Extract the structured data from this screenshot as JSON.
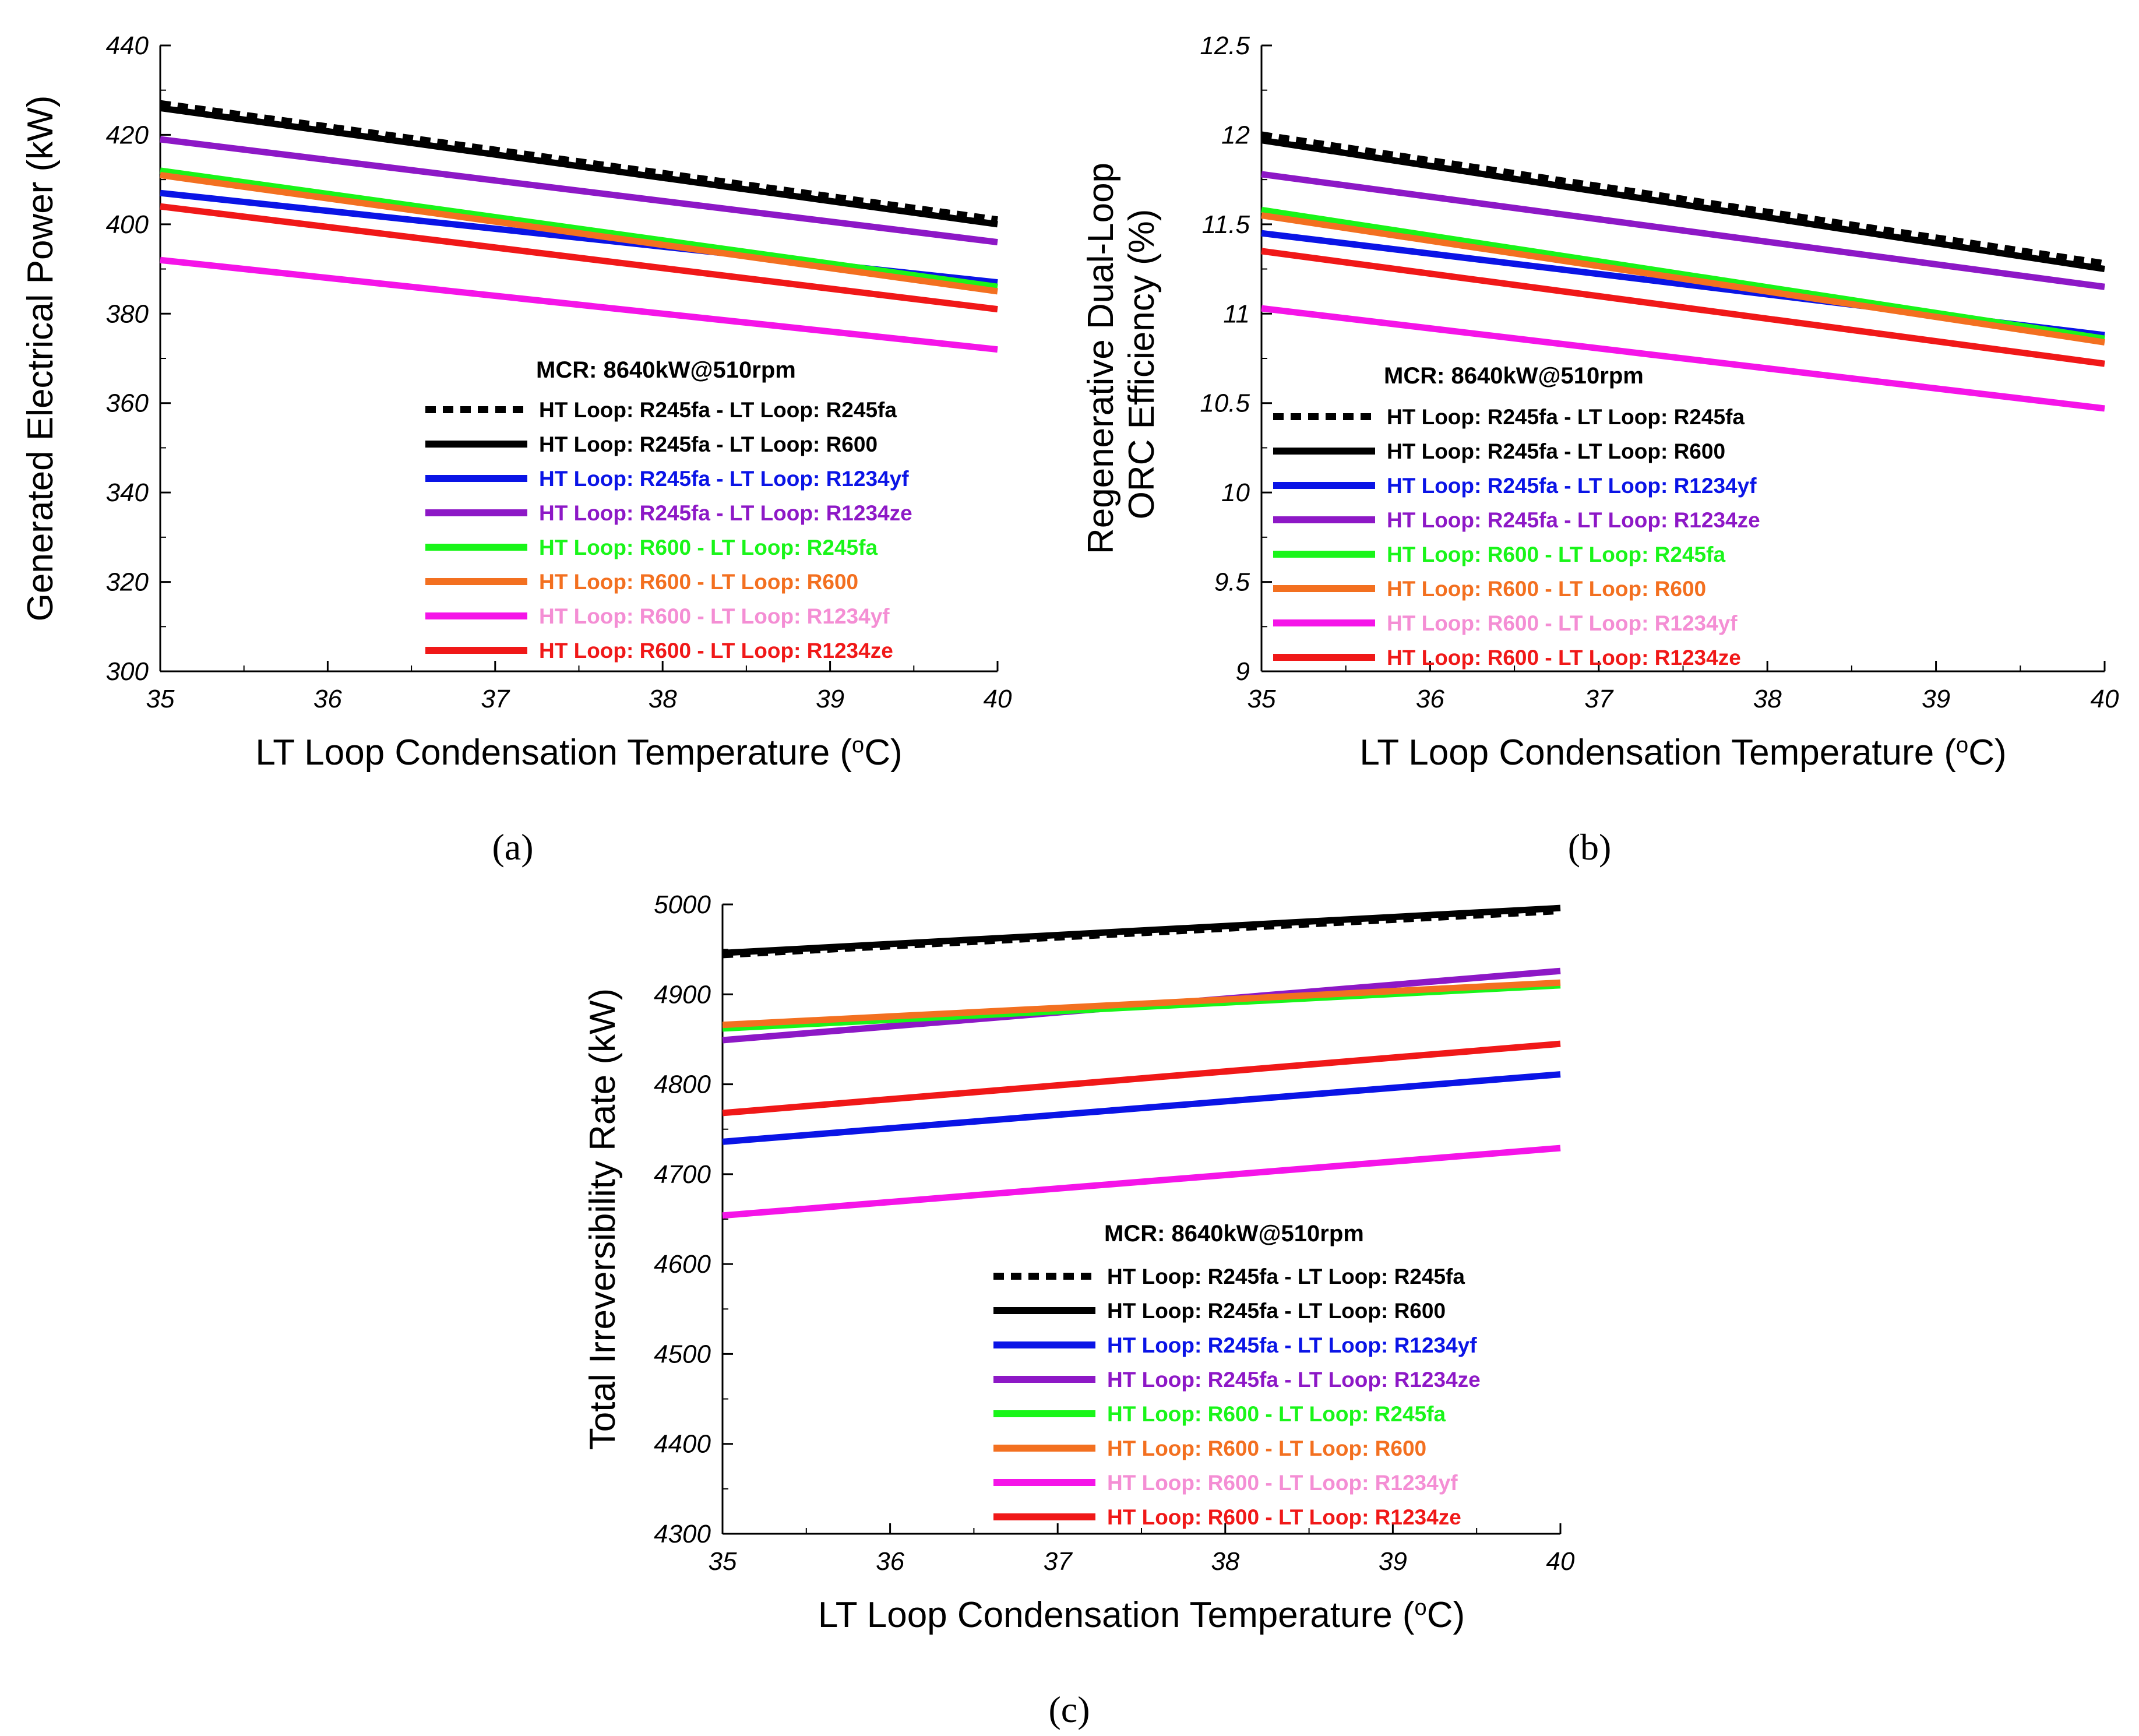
{
  "figure_labels": [
    "(a)",
    "(b)",
    "(c)"
  ],
  "legend_colors": {
    "black": "#000000",
    "blue": "#0a14e6",
    "purple": "#8d18c6",
    "green": "#19f519",
    "orange": "#f37020",
    "magenta": "#f514e8",
    "pink": "#f48ed4",
    "red": "#f01818"
  },
  "chart_data": [
    {
      "type": "line",
      "panel": "(a)",
      "xlabel": "LT Loop Condensation Temperature (",
      "xlabel_sup": "o",
      "xlabel_end": "C)",
      "ylabel": "Generated Electrical Power (kW)",
      "xlim": [
        35,
        40
      ],
      "ylim": [
        300,
        440
      ],
      "xticks": [
        35,
        36,
        37,
        38,
        39,
        40
      ],
      "yticks": [
        300,
        320,
        340,
        360,
        380,
        400,
        420,
        440
      ],
      "grid": false,
      "legend_title": "MCR: 8640kW@510rpm",
      "legend_placement": "bottom-right",
      "x": [
        35,
        40
      ],
      "series": [
        {
          "name": "HT Loop: R245fa - LT Loop: R245fa",
          "values": [
            427,
            401
          ],
          "color": "#000000",
          "label_color": "#000000",
          "dashed": true
        },
        {
          "name": "HT Loop: R245fa - LT Loop: R600",
          "values": [
            426,
            400
          ],
          "color": "#000000",
          "label_color": "#000000",
          "dashed": false
        },
        {
          "name": "HT Loop: R245fa - LT Loop: R1234yf",
          "values": [
            407,
            387
          ],
          "color": "#0a14e6",
          "label_color": "#0a14e6",
          "dashed": false
        },
        {
          "name": "HT Loop: R245fa - LT Loop: R1234ze",
          "values": [
            419,
            396
          ],
          "color": "#8d18c6",
          "label_color": "#8d18c6",
          "dashed": false
        },
        {
          "name": "HT Loop: R600 - LT Loop: R245fa",
          "values": [
            412,
            386
          ],
          "color": "#19f519",
          "label_color": "#19f519",
          "dashed": false
        },
        {
          "name": "HT Loop: R600 - LT Loop: R600",
          "values": [
            411,
            385
          ],
          "color": "#f37020",
          "label_color": "#f37020",
          "dashed": false
        },
        {
          "name": "HT Loop: R600 - LT Loop: R1234yf",
          "values": [
            392,
            372
          ],
          "color": "#f514e8",
          "label_color": "#f48ed4",
          "dashed": false
        },
        {
          "name": "HT Loop: R600 - LT Loop: R1234ze",
          "values": [
            404,
            381
          ],
          "color": "#f01818",
          "label_color": "#f01818",
          "dashed": false
        }
      ]
    },
    {
      "type": "line",
      "panel": "(b)",
      "xlabel": "LT Loop Condensation Temperature (",
      "xlabel_sup": "o",
      "xlabel_end": "C)",
      "ylabel": "Regenerative Dual-Loop",
      "ylabel2": "ORC Efficiency (%)",
      "xlim": [
        35,
        40
      ],
      "ylim": [
        9,
        12.5
      ],
      "xticks": [
        35,
        36,
        37,
        38,
        39,
        40
      ],
      "yticks": [
        9,
        9.5,
        10,
        10.5,
        11,
        11.5,
        12,
        12.5
      ],
      "grid": false,
      "legend_title": "MCR: 8640kW@510rpm",
      "legend_placement": "bottom-right",
      "x": [
        35,
        40
      ],
      "series": [
        {
          "name": "HT Loop: R245fa - LT Loop: R245fa",
          "values": [
            12.0,
            11.28
          ],
          "color": "#000000",
          "label_color": "#000000",
          "dashed": true
        },
        {
          "name": "HT Loop: R245fa - LT Loop: R600",
          "values": [
            11.97,
            11.25
          ],
          "color": "#000000",
          "label_color": "#000000",
          "dashed": false
        },
        {
          "name": "HT Loop: R245fa - LT Loop: R1234yf",
          "values": [
            11.45,
            10.88
          ],
          "color": "#0a14e6",
          "label_color": "#0a14e6",
          "dashed": false
        },
        {
          "name": "HT Loop: R245fa - LT Loop: R1234ze",
          "values": [
            11.78,
            11.15
          ],
          "color": "#8d18c6",
          "label_color": "#8d18c6",
          "dashed": false
        },
        {
          "name": "HT Loop: R600 - LT Loop: R245fa",
          "values": [
            11.58,
            10.86
          ],
          "color": "#19f519",
          "label_color": "#19f519",
          "dashed": false
        },
        {
          "name": "HT Loop: R600 - LT Loop: R600",
          "values": [
            11.55,
            10.84
          ],
          "color": "#f37020",
          "label_color": "#f37020",
          "dashed": false
        },
        {
          "name": "HT Loop: R600 - LT Loop: R1234yf",
          "values": [
            11.03,
            10.47
          ],
          "color": "#f514e8",
          "label_color": "#f48ed4",
          "dashed": false
        },
        {
          "name": "HT Loop: R600 - LT Loop: R1234ze",
          "values": [
            11.35,
            10.72
          ],
          "color": "#f01818",
          "label_color": "#f01818",
          "dashed": false
        }
      ]
    },
    {
      "type": "line",
      "panel": "(c)",
      "xlabel": "LT Loop Condensation Temperature (",
      "xlabel_sup": "o",
      "xlabel_end": "C)",
      "ylabel": "Total Irreversibility Rate (kW)",
      "xlim": [
        35,
        40
      ],
      "ylim": [
        4300,
        5000
      ],
      "xticks": [
        35,
        36,
        37,
        38,
        39,
        40
      ],
      "yticks": [
        4300,
        4400,
        4500,
        4600,
        4700,
        4800,
        4900,
        5000
      ],
      "grid": false,
      "legend_title": "MCR: 8640kW@510rpm",
      "legend_placement": "bottom-right",
      "x": [
        35,
        40
      ],
      "series": [
        {
          "name": "HT Loop: R245fa - LT Loop: R245fa",
          "values": [
            4944,
            4993
          ],
          "color": "#000000",
          "label_color": "#000000",
          "dashed": true
        },
        {
          "name": "HT Loop: R245fa - LT Loop: R600",
          "values": [
            4946,
            4996
          ],
          "color": "#000000",
          "label_color": "#000000",
          "dashed": false
        },
        {
          "name": "HT Loop: R245fa - LT Loop: R1234yf",
          "values": [
            4736,
            4811
          ],
          "color": "#0a14e6",
          "label_color": "#0a14e6",
          "dashed": false
        },
        {
          "name": "HT Loop: R245fa - LT Loop: R1234ze",
          "values": [
            4849,
            4926
          ],
          "color": "#8d18c6",
          "label_color": "#8d18c6",
          "dashed": false
        },
        {
          "name": "HT Loop: R600 - LT Loop: R245fa",
          "values": [
            4862,
            4910
          ],
          "color": "#19f519",
          "label_color": "#19f519",
          "dashed": false
        },
        {
          "name": "HT Loop: R600 - LT Loop: R600",
          "values": [
            4866,
            4913
          ],
          "color": "#f37020",
          "label_color": "#f37020",
          "dashed": false
        },
        {
          "name": "HT Loop: R600 - LT Loop: R1234yf",
          "values": [
            4654,
            4729
          ],
          "color": "#f514e8",
          "label_color": "#f48ed4",
          "dashed": false
        },
        {
          "name": "HT Loop: R600 - LT Loop: R1234ze",
          "values": [
            4768,
            4845
          ],
          "color": "#f01818",
          "label_color": "#f01818",
          "dashed": false
        }
      ]
    }
  ]
}
